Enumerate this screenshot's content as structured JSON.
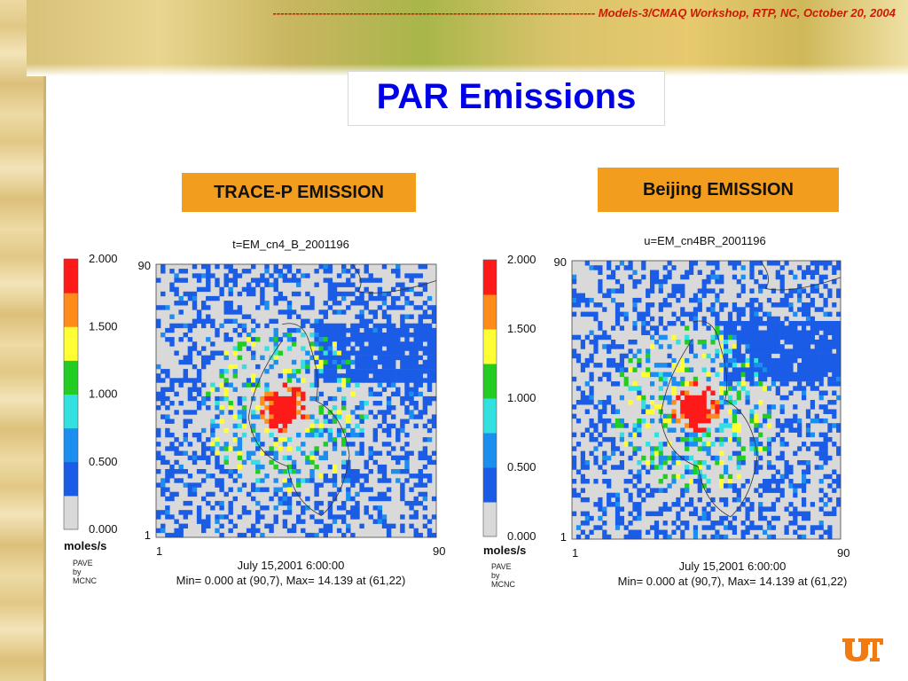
{
  "header": {
    "text": "------------------------------------------------------------------------------------ Models-3/CMAQ Workshop, RTP, NC, October 20, 2004"
  },
  "slide": {
    "title": "PAR Emissions"
  },
  "labels": {
    "left": "TRACE-P EMISSION",
    "right": "Beijing EMISSION"
  },
  "colors": {
    "bin_colors": [
      "#d9d9d9",
      "#1a5ce6",
      "#1c8ef0",
      "#33e0e0",
      "#22cc22",
      "#ffff33",
      "#ff8c1a",
      "#ff1a1a"
    ],
    "header": "#cc1a00",
    "title": "#0000e8",
    "label_box": "#f39d1e"
  },
  "chart_data": [
    {
      "type": "heatmap",
      "title": "t=EM_cn4_B_2001196",
      "colorbar": {
        "ticks": [
          "2.000",
          "1.500",
          "1.000",
          "0.500",
          "0.000"
        ],
        "unit": "moles/s",
        "range": [
          0,
          2
        ]
      },
      "x_ticks": [
        "1",
        "90"
      ],
      "y_ticks": [
        "90",
        "1"
      ],
      "grid_range": {
        "x": [
          1,
          90
        ],
        "y": [
          1,
          90
        ]
      },
      "footer": {
        "time": "July 15,2001 6:00:00",
        "stats": "Min=   0.000 at (90,7), Max=  14.139 at (61,22)"
      },
      "credit": [
        "PAVE",
        "by",
        "MCNC"
      ],
      "min": {
        "value": 0.0,
        "at": [
          90,
          7
        ]
      },
      "max": {
        "value": 14.139,
        "at": [
          61,
          22
        ]
      }
    },
    {
      "type": "heatmap",
      "title": "u=EM_cn4BR_2001196",
      "colorbar": {
        "ticks": [
          "2.000",
          "1.500",
          "1.000",
          "0.500",
          "0.000"
        ],
        "unit": "moles/s",
        "range": [
          0,
          2
        ]
      },
      "x_ticks": [
        "1",
        "90"
      ],
      "y_ticks": [
        "90",
        "1"
      ],
      "grid_range": {
        "x": [
          1,
          90
        ],
        "y": [
          1,
          90
        ]
      },
      "footer": {
        "time": "July 15,2001 6:00:00",
        "stats": "Min=   0.000 at (90,7), Max=  14.139 at (61,22)"
      },
      "credit": [
        "PAVE",
        "by",
        "MCNC"
      ],
      "min": {
        "value": 0.0,
        "at": [
          90,
          7
        ]
      },
      "max": {
        "value": 14.139,
        "at": [
          61,
          22
        ]
      }
    }
  ]
}
